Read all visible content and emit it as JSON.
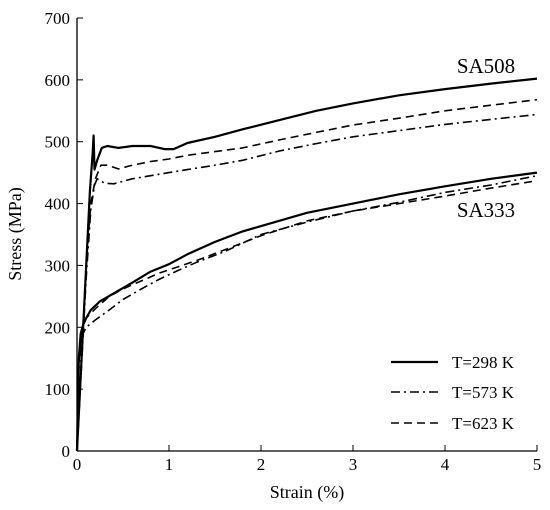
{
  "chart_data": {
    "type": "line",
    "title": "",
    "xlabel": "Strain (%)",
    "ylabel": "Stress (MPa)",
    "xlim": [
      0,
      5
    ],
    "ylim": [
      0,
      700
    ],
    "xticks": [
      0,
      1,
      2,
      3,
      4,
      5
    ],
    "yticks": [
      0,
      100,
      200,
      300,
      400,
      500,
      600,
      700
    ],
    "grid": false,
    "legend_position": "bottom-right",
    "legend": [
      {
        "label": "T=298 K",
        "dash": "solid"
      },
      {
        "label": "T=573 K",
        "dash": "dashdot"
      },
      {
        "label": "T=623 K",
        "dash": "dashed"
      }
    ],
    "annotations": [
      {
        "text": "SA508",
        "x": 4.55,
        "y": 620
      },
      {
        "text": "SA333",
        "x": 4.55,
        "y": 390
      }
    ],
    "series": [
      {
        "group": "SA508",
        "temperature": "T=298 K",
        "dash": "solid",
        "points": [
          [
            0.0,
            0
          ],
          [
            0.05,
            150
          ],
          [
            0.1,
            300
          ],
          [
            0.14,
            420
          ],
          [
            0.17,
            480
          ],
          [
            0.18,
            510
          ],
          [
            0.19,
            455
          ],
          [
            0.22,
            470
          ],
          [
            0.27,
            490
          ],
          [
            0.33,
            493
          ],
          [
            0.45,
            490
          ],
          [
            0.6,
            493
          ],
          [
            0.8,
            493
          ],
          [
            0.95,
            488
          ],
          [
            1.05,
            488
          ],
          [
            1.2,
            498
          ],
          [
            1.5,
            508
          ],
          [
            1.8,
            520
          ],
          [
            2.2,
            535
          ],
          [
            2.6,
            550
          ],
          [
            3.0,
            562
          ],
          [
            3.5,
            575
          ],
          [
            4.0,
            585
          ],
          [
            4.5,
            594
          ],
          [
            5.0,
            602
          ]
        ]
      },
      {
        "group": "SA508",
        "temperature": "T=573 K",
        "dash": "dashdot",
        "points": [
          [
            0.0,
            0
          ],
          [
            0.05,
            140
          ],
          [
            0.1,
            280
          ],
          [
            0.15,
            390
          ],
          [
            0.19,
            430
          ],
          [
            0.22,
            440
          ],
          [
            0.3,
            433
          ],
          [
            0.4,
            432
          ],
          [
            0.6,
            440
          ],
          [
            0.8,
            445
          ],
          [
            1.0,
            450
          ],
          [
            1.2,
            455
          ],
          [
            1.5,
            462
          ],
          [
            1.8,
            470
          ],
          [
            2.2,
            485
          ],
          [
            2.6,
            497
          ],
          [
            3.0,
            508
          ],
          [
            3.5,
            518
          ],
          [
            4.0,
            528
          ],
          [
            4.5,
            536
          ],
          [
            5.0,
            544
          ]
        ]
      },
      {
        "group": "SA508",
        "temperature": "T=623 K",
        "dash": "dashed",
        "points": [
          [
            0.0,
            0
          ],
          [
            0.05,
            150
          ],
          [
            0.1,
            300
          ],
          [
            0.15,
            400
          ],
          [
            0.2,
            440
          ],
          [
            0.26,
            462
          ],
          [
            0.33,
            462
          ],
          [
            0.45,
            456
          ],
          [
            0.6,
            462
          ],
          [
            0.8,
            468
          ],
          [
            1.0,
            472
          ],
          [
            1.2,
            478
          ],
          [
            1.5,
            484
          ],
          [
            1.8,
            490
          ],
          [
            2.2,
            503
          ],
          [
            2.6,
            515
          ],
          [
            3.0,
            527
          ],
          [
            3.5,
            538
          ],
          [
            4.0,
            550
          ],
          [
            4.5,
            559
          ],
          [
            5.0,
            568
          ]
        ]
      },
      {
        "group": "SA333",
        "temperature": "T=298 K",
        "dash": "solid",
        "points": [
          [
            0.0,
            0
          ],
          [
            0.02,
            150
          ],
          [
            0.04,
            190
          ],
          [
            0.07,
            205
          ],
          [
            0.1,
            215
          ],
          [
            0.15,
            228
          ],
          [
            0.25,
            242
          ],
          [
            0.4,
            255
          ],
          [
            0.6,
            272
          ],
          [
            0.8,
            290
          ],
          [
            1.0,
            302
          ],
          [
            1.2,
            318
          ],
          [
            1.5,
            338
          ],
          [
            1.8,
            355
          ],
          [
            2.1,
            368
          ],
          [
            2.5,
            385
          ],
          [
            3.0,
            400
          ],
          [
            3.5,
            415
          ],
          [
            4.0,
            428
          ],
          [
            4.5,
            440
          ],
          [
            5.0,
            450
          ]
        ]
      },
      {
        "group": "SA333",
        "temperature": "T=573 K",
        "dash": "dashdot",
        "points": [
          [
            0.0,
            0
          ],
          [
            0.02,
            130
          ],
          [
            0.05,
            185
          ],
          [
            0.1,
            200
          ],
          [
            0.2,
            212
          ],
          [
            0.35,
            228
          ],
          [
            0.5,
            245
          ],
          [
            0.7,
            262
          ],
          [
            0.9,
            278
          ],
          [
            1.1,
            292
          ],
          [
            1.3,
            305
          ],
          [
            1.6,
            322
          ],
          [
            2.0,
            350
          ],
          [
            2.5,
            370
          ],
          [
            3.0,
            388
          ],
          [
            3.5,
            402
          ],
          [
            4.0,
            418
          ],
          [
            4.5,
            430
          ],
          [
            5.0,
            445
          ]
        ]
      },
      {
        "group": "SA333",
        "temperature": "T=623 K",
        "dash": "dashed",
        "points": [
          [
            0.0,
            0
          ],
          [
            0.02,
            140
          ],
          [
            0.05,
            195
          ],
          [
            0.1,
            215
          ],
          [
            0.2,
            230
          ],
          [
            0.35,
            250
          ],
          [
            0.5,
            262
          ],
          [
            0.7,
            275
          ],
          [
            0.9,
            288
          ],
          [
            1.1,
            298
          ],
          [
            1.3,
            308
          ],
          [
            1.6,
            325
          ],
          [
            2.0,
            348
          ],
          [
            2.5,
            372
          ],
          [
            3.0,
            388
          ],
          [
            3.5,
            400
          ],
          [
            4.0,
            412
          ],
          [
            4.5,
            425
          ],
          [
            5.0,
            437
          ]
        ]
      }
    ]
  }
}
